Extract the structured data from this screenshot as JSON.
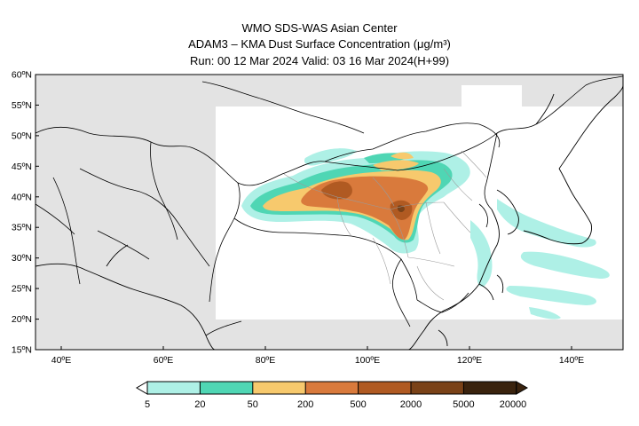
{
  "header": {
    "line1": "WMO SDS-WAS Asian Center",
    "line2": "ADAM3 – KMA Dust Surface Concentration (μg/m³)",
    "line3": "Run: 00 12 Mar 2024    Valid: 03 16 Mar 2024(H+99)"
  },
  "map": {
    "lon_range": [
      35,
      150
    ],
    "lat_range": [
      15,
      60
    ],
    "lat_ticks": [
      "15ºN",
      "20ºN",
      "25ºN",
      "30ºN",
      "35ºN",
      "40ºN",
      "45ºN",
      "50ºN",
      "55ºN",
      "60ºN"
    ],
    "lon_ticks": [
      "40ºE",
      "60ºE",
      "80ºE",
      "100ºE",
      "120ºE",
      "140ºE"
    ],
    "colors": {
      "ocean": "#ffffff",
      "outside_domain": "#e3e3e3",
      "coast": "#000000",
      "province": "#9a9a9a"
    }
  },
  "colorbar": {
    "levels": [
      "5",
      "20",
      "50",
      "200",
      "500",
      "2000",
      "5000",
      "20000"
    ],
    "colors": [
      "#aef0e6",
      "#4fd6b4",
      "#f7c96d",
      "#d97a3c",
      "#b05a22",
      "#7a4218",
      "#3a230e"
    ],
    "under_color": "#ffffff"
  }
}
